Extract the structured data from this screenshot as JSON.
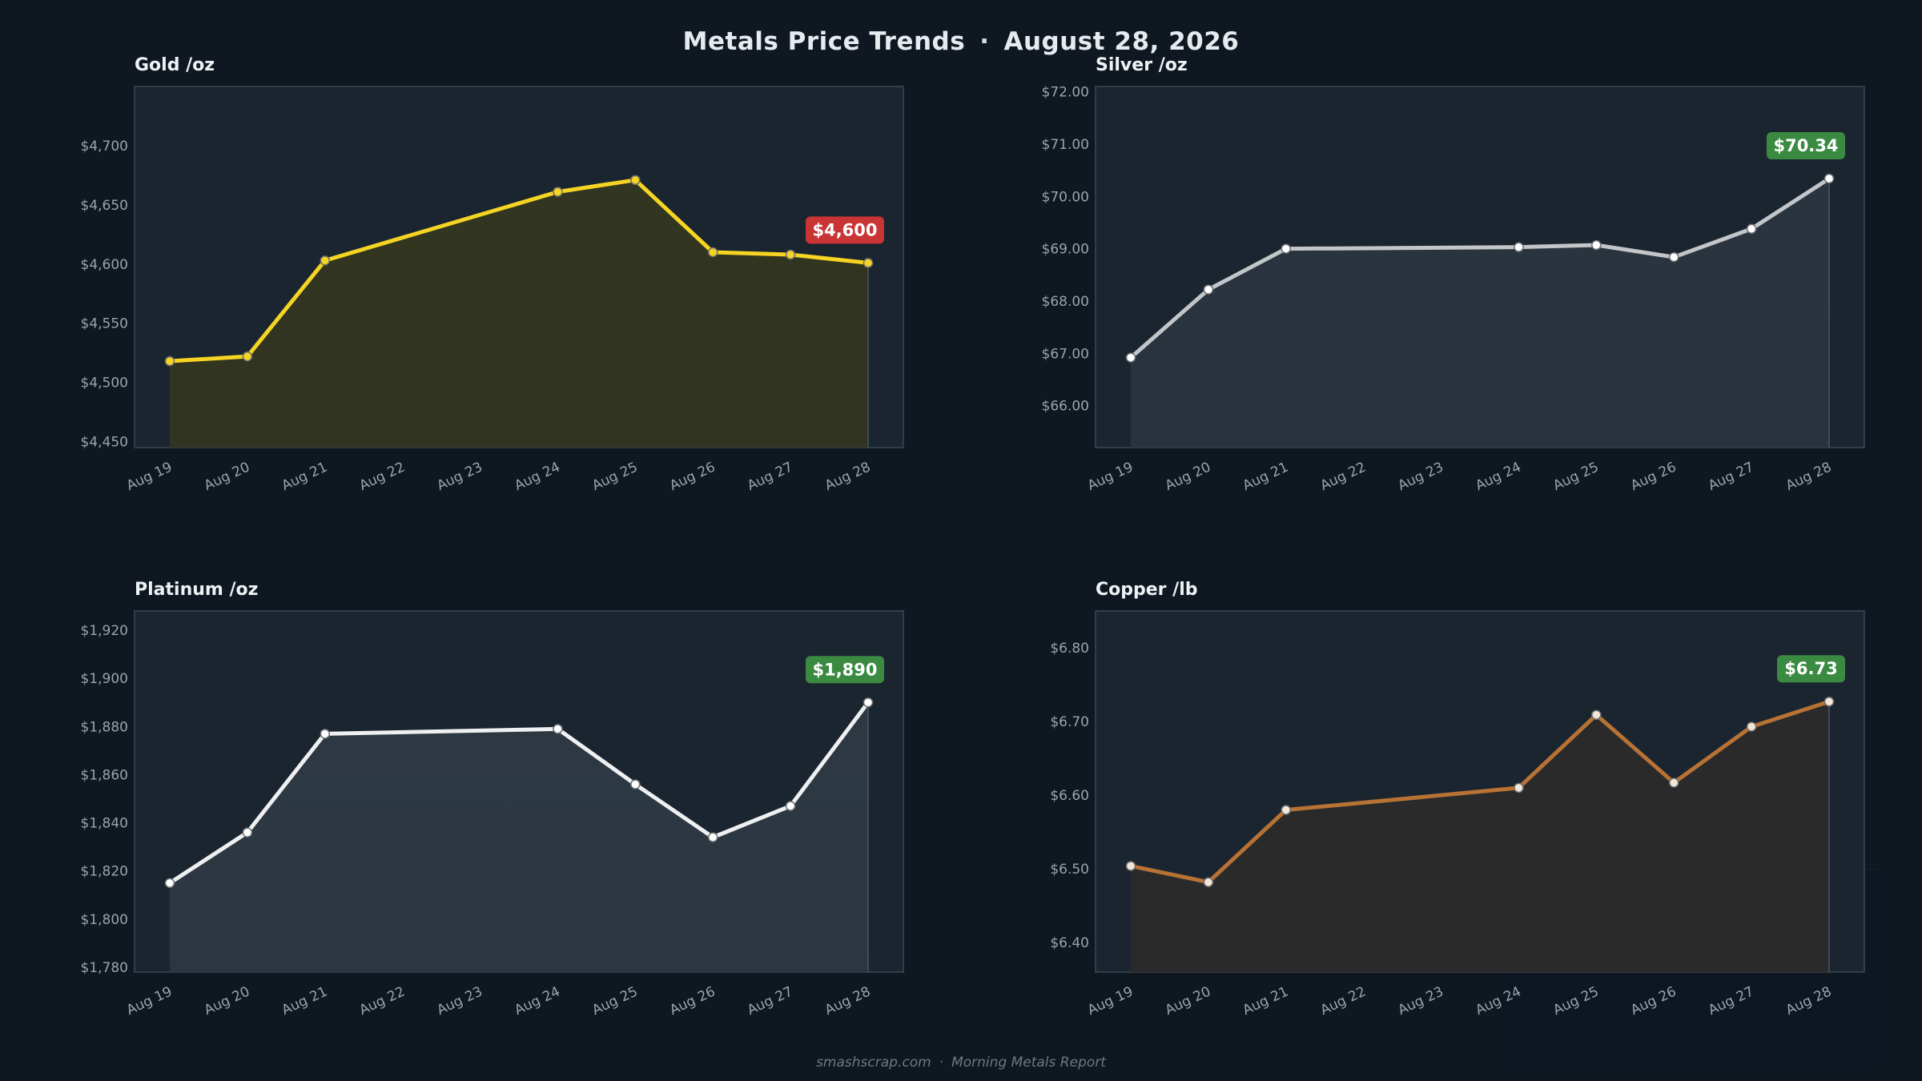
{
  "page": {
    "title": "Metals Price Trends",
    "title_sep": "·",
    "date": "August 28, 2026",
    "footer_site": "smashscrap.com",
    "footer_sep": "·",
    "footer_report": "Morning Metals Report"
  },
  "colors": {
    "background": "#0f1720",
    "panel": "#1b2530",
    "grid_text": "#9aa4ae",
    "badge_down": "#c93434",
    "badge_up": "#3a8a42"
  },
  "chart_data": [
    {
      "type": "line",
      "title": "Gold  /oz",
      "x": [
        "Aug 19",
        "Aug 20",
        "Aug 21",
        "Aug 22",
        "Aug 23",
        "Aug 24",
        "Aug 25",
        "Aug 26",
        "Aug 27",
        "Aug 28"
      ],
      "points": [
        {
          "x": "Aug 19",
          "y": 4518
        },
        {
          "x": "Aug 20",
          "y": 4522
        },
        {
          "x": "Aug 21",
          "y": 4603
        },
        {
          "x": "Aug 24",
          "y": 4661
        },
        {
          "x": "Aug 25",
          "y": 4671
        },
        {
          "x": "Aug 26",
          "y": 4610
        },
        {
          "x": "Aug 27",
          "y": 4608
        },
        {
          "x": "Aug 28",
          "y": 4601
        }
      ],
      "ylim": [
        4445,
        4750
      ],
      "yticks": [
        4450,
        4500,
        4550,
        4600,
        4650,
        4700
      ],
      "ytick_labels": [
        "$4,450",
        "$4,500",
        "$4,550",
        "$4,600",
        "$4,650",
        "$4,700"
      ],
      "last_label": "$4,600",
      "color": "#f5d423",
      "fill_color": "#32351f",
      "badge_color": "#c93434",
      "marker_fill": "#f5d423"
    },
    {
      "type": "line",
      "title": "Silver  /oz",
      "x": [
        "Aug 19",
        "Aug 20",
        "Aug 21",
        "Aug 22",
        "Aug 23",
        "Aug 24",
        "Aug 25",
        "Aug 26",
        "Aug 27",
        "Aug 28"
      ],
      "points": [
        {
          "x": "Aug 19",
          "y": 66.92
        },
        {
          "x": "Aug 20",
          "y": 68.22
        },
        {
          "x": "Aug 21",
          "y": 69.0
        },
        {
          "x": "Aug 24",
          "y": 69.03
        },
        {
          "x": "Aug 25",
          "y": 69.07
        },
        {
          "x": "Aug 26",
          "y": 68.84
        },
        {
          "x": "Aug 27",
          "y": 69.38
        },
        {
          "x": "Aug 28",
          "y": 70.34
        }
      ],
      "ylim": [
        65.2,
        72.1
      ],
      "yticks": [
        66,
        67,
        68,
        69,
        70,
        71,
        72
      ],
      "ytick_labels": [
        "$66.00",
        "$67.00",
        "$68.00",
        "$69.00",
        "$70.00",
        "$71.00",
        "$72.00"
      ],
      "last_label": "$70.34",
      "color": "#c3c6c9",
      "fill_color": "#2a343f",
      "badge_color": "#3a8a42",
      "marker_fill": "#ffffff"
    },
    {
      "type": "line",
      "title": "Platinum  /oz",
      "x": [
        "Aug 19",
        "Aug 20",
        "Aug 21",
        "Aug 22",
        "Aug 23",
        "Aug 24",
        "Aug 25",
        "Aug 26",
        "Aug 27",
        "Aug 28"
      ],
      "points": [
        {
          "x": "Aug 19",
          "y": 1815
        },
        {
          "x": "Aug 20",
          "y": 1836
        },
        {
          "x": "Aug 21",
          "y": 1877
        },
        {
          "x": "Aug 24",
          "y": 1879
        },
        {
          "x": "Aug 25",
          "y": 1856
        },
        {
          "x": "Aug 26",
          "y": 1834
        },
        {
          "x": "Aug 27",
          "y": 1847
        },
        {
          "x": "Aug 28",
          "y": 1890
        }
      ],
      "ylim": [
        1778,
        1928
      ],
      "yticks": [
        1780,
        1800,
        1820,
        1840,
        1860,
        1880,
        1900,
        1920
      ],
      "ytick_labels": [
        "$1,780",
        "$1,800",
        "$1,820",
        "$1,840",
        "$1,860",
        "$1,880",
        "$1,900",
        "$1,920"
      ],
      "last_label": "$1,890",
      "color": "#eef0f2",
      "fill_color": "#2d3842",
      "badge_color": "#3a8a42",
      "marker_fill": "#ffffff"
    },
    {
      "type": "line",
      "title": "Copper  /lb",
      "x": [
        "Aug 19",
        "Aug 20",
        "Aug 21",
        "Aug 22",
        "Aug 23",
        "Aug 24",
        "Aug 25",
        "Aug 26",
        "Aug 27",
        "Aug 28"
      ],
      "points": [
        {
          "x": "Aug 19",
          "y": 6.504
        },
        {
          "x": "Aug 20",
          "y": 6.482
        },
        {
          "x": "Aug 21",
          "y": 6.58
        },
        {
          "x": "Aug 24",
          "y": 6.61
        },
        {
          "x": "Aug 25",
          "y": 6.709
        },
        {
          "x": "Aug 26",
          "y": 6.617
        },
        {
          "x": "Aug 27",
          "y": 6.693
        },
        {
          "x": "Aug 28",
          "y": 6.727
        }
      ],
      "ylim": [
        6.36,
        6.85
      ],
      "yticks": [
        6.4,
        6.5,
        6.6,
        6.7,
        6.8
      ],
      "ytick_labels": [
        "$6.40",
        "$6.50",
        "$6.60",
        "$6.70",
        "$6.80"
      ],
      "last_label": "$6.73",
      "color": "#b87234",
      "fill_color": "#2b2a2b",
      "badge_color": "#3a8a42",
      "marker_fill": "#f4e6d6"
    }
  ]
}
